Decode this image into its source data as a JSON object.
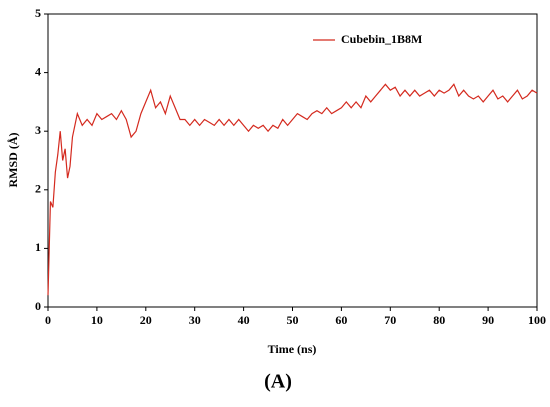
{
  "chart_data": {
    "type": "line",
    "x_label": "Time (ns)",
    "y_label": "RMSD (Å)",
    "caption": "(A)",
    "legend": "upper right",
    "x": [
      0,
      0.5,
      1,
      1.5,
      2,
      2.5,
      3,
      3.5,
      4,
      4.5,
      5,
      5.5,
      6,
      7,
      8,
      9,
      10,
      11,
      12,
      13,
      14,
      15,
      16,
      17,
      18,
      19,
      20,
      21,
      22,
      23,
      24,
      25,
      26,
      27,
      28,
      29,
      30,
      31,
      32,
      33,
      34,
      35,
      36,
      37,
      38,
      39,
      40,
      41,
      42,
      43,
      44,
      45,
      46,
      47,
      48,
      49,
      50,
      51,
      52,
      53,
      54,
      55,
      56,
      57,
      58,
      59,
      60,
      61,
      62,
      63,
      64,
      65,
      66,
      67,
      68,
      69,
      70,
      71,
      72,
      73,
      74,
      75,
      76,
      77,
      78,
      79,
      80,
      81,
      82,
      83,
      84,
      85,
      86,
      87,
      88,
      89,
      90,
      91,
      92,
      93,
      94,
      95,
      96,
      97,
      98,
      99,
      100
    ],
    "series": [
      {
        "name": "Cubebin_1B8M",
        "color": "#d42a1f",
        "values": [
          0.2,
          1.8,
          1.7,
          2.3,
          2.6,
          3.0,
          2.5,
          2.7,
          2.2,
          2.4,
          2.9,
          3.1,
          3.3,
          3.1,
          3.2,
          3.1,
          3.3,
          3.2,
          3.25,
          3.3,
          3.2,
          3.35,
          3.2,
          2.9,
          3.0,
          3.3,
          3.5,
          3.7,
          3.4,
          3.5,
          3.3,
          3.6,
          3.4,
          3.2,
          3.2,
          3.1,
          3.2,
          3.1,
          3.2,
          3.15,
          3.1,
          3.2,
          3.1,
          3.2,
          3.1,
          3.2,
          3.1,
          3.0,
          3.1,
          3.05,
          3.1,
          3.0,
          3.1,
          3.05,
          3.2,
          3.1,
          3.2,
          3.3,
          3.25,
          3.2,
          3.3,
          3.35,
          3.3,
          3.4,
          3.3,
          3.35,
          3.4,
          3.5,
          3.4,
          3.5,
          3.4,
          3.6,
          3.5,
          3.6,
          3.7,
          3.8,
          3.7,
          3.75,
          3.6,
          3.7,
          3.6,
          3.7,
          3.6,
          3.65,
          3.7,
          3.6,
          3.7,
          3.65,
          3.7,
          3.8,
          3.6,
          3.7,
          3.6,
          3.55,
          3.6,
          3.5,
          3.6,
          3.7,
          3.55,
          3.6,
          3.5,
          3.6,
          3.7,
          3.55,
          3.6,
          3.7,
          3.65
        ]
      }
    ],
    "xlim": [
      0,
      100
    ],
    "xticks": [
      0,
      10,
      20,
      30,
      40,
      50,
      60,
      70,
      80,
      90,
      100
    ],
    "ylim": [
      0,
      5
    ],
    "yticks": [
      0,
      1,
      2,
      3,
      4,
      5
    ]
  }
}
